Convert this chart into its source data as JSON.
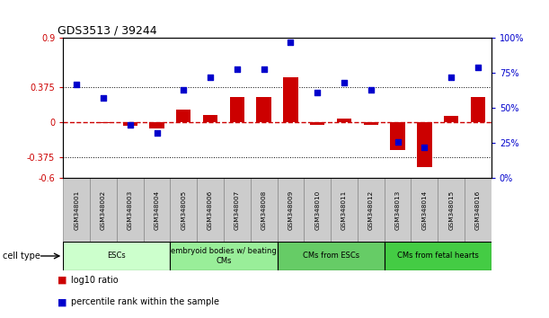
{
  "title": "GDS3513 / 39244",
  "samples": [
    "GSM348001",
    "GSM348002",
    "GSM348003",
    "GSM348004",
    "GSM348005",
    "GSM348006",
    "GSM348007",
    "GSM348008",
    "GSM348009",
    "GSM348010",
    "GSM348011",
    "GSM348012",
    "GSM348013",
    "GSM348014",
    "GSM348015",
    "GSM348016"
  ],
  "log10_ratio": [
    0.0,
    -0.01,
    -0.04,
    -0.07,
    0.13,
    0.08,
    0.27,
    0.27,
    0.48,
    -0.03,
    0.04,
    -0.03,
    -0.3,
    -0.48,
    0.07,
    0.27
  ],
  "percentile_rank": [
    67,
    57,
    38,
    32,
    63,
    72,
    78,
    78,
    97,
    61,
    68,
    63,
    26,
    22,
    72,
    79
  ],
  "ylim_left": [
    -0.6,
    0.9
  ],
  "ylim_right": [
    0,
    100
  ],
  "yticks_left": [
    -0.6,
    -0.375,
    0,
    0.375,
    0.9
  ],
  "yticks_right": [
    0,
    25,
    50,
    75,
    100
  ],
  "ytick_labels_left": [
    "-0.6",
    "-0.375",
    "0",
    "0.375",
    "0.9"
  ],
  "ytick_labels_right": [
    "0%",
    "25%",
    "50%",
    "75%",
    "100%"
  ],
  "hlines": [
    0.375,
    -0.375
  ],
  "bar_color": "#CC0000",
  "scatter_color": "#0000CC",
  "zero_line_color": "#CC0000",
  "cell_type_groups": [
    {
      "label": "ESCs",
      "start": 0,
      "end": 3,
      "color": "#ccffcc"
    },
    {
      "label": "embryoid bodies w/ beating\nCMs",
      "start": 4,
      "end": 7,
      "color": "#99ee99"
    },
    {
      "label": "CMs from ESCs",
      "start": 8,
      "end": 11,
      "color": "#66cc66"
    },
    {
      "label": "CMs from fetal hearts",
      "start": 12,
      "end": 15,
      "color": "#44cc44"
    }
  ],
  "legend_bar_label": "log10 ratio",
  "legend_scatter_label": "percentile rank within the sample",
  "cell_type_label": "cell type",
  "background_color": "#ffffff",
  "plot_bg_color": "#ffffff",
  "tick_label_color_left": "#CC0000",
  "tick_label_color_right": "#0000CC",
  "sample_box_color": "#cccccc",
  "sample_box_edge": "#888888"
}
